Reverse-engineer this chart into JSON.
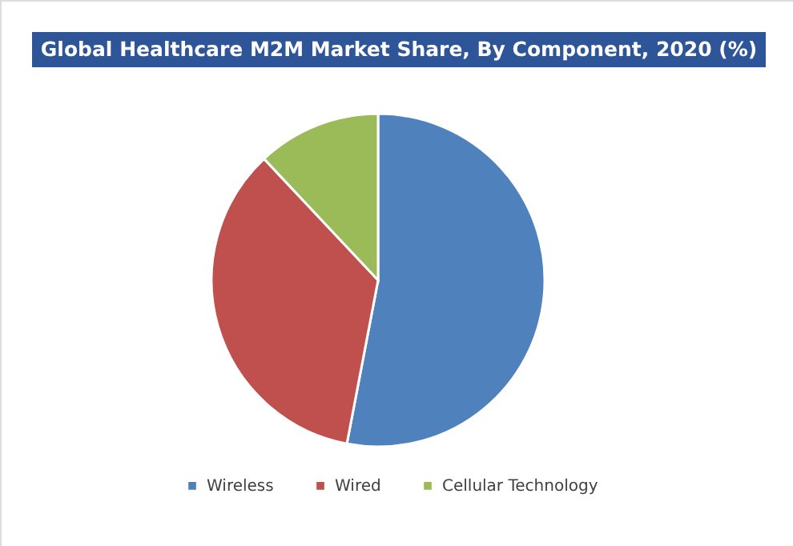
{
  "chart_data": {
    "type": "pie",
    "title": "Global Healthcare M2M Market Share, By Component, 2020 (%)",
    "categories": [
      "Wireless",
      "Wired",
      "Cellular Technology"
    ],
    "values": [
      53,
      35,
      12
    ],
    "colors": [
      "#4f81bd",
      "#c0504d",
      "#9bbb59"
    ],
    "legend": "bottom"
  }
}
